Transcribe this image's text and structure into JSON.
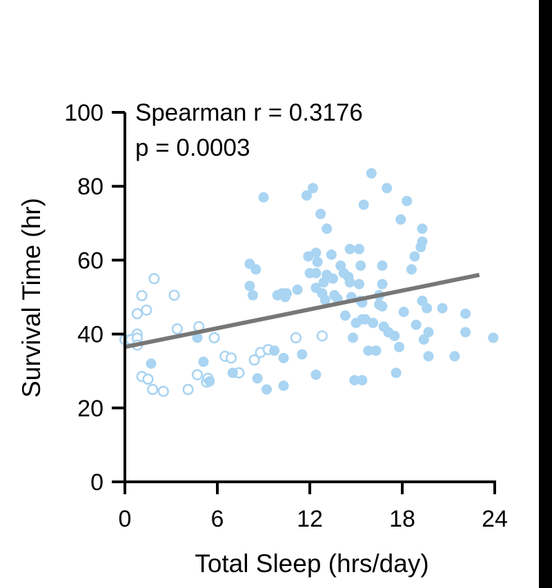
{
  "chart_data": {
    "type": "scatter",
    "xlabel": "Total Sleep (hrs/day)",
    "ylabel": "Survival Time (hr)",
    "xlim": [
      0,
      24
    ],
    "ylim": [
      0,
      100
    ],
    "xticks": [
      0,
      6,
      12,
      18,
      24
    ],
    "yticks": [
      0,
      20,
      40,
      60,
      80,
      100
    ],
    "annotations": [
      "Spearman r = 0.3176",
      "p = 0.0003"
    ],
    "grid": false,
    "series": [
      {
        "marker": "open-circle",
        "color": "#a9d4f2",
        "points": [
          [
            0,
            38.5
          ],
          [
            0.4,
            38.5
          ],
          [
            0.8,
            40
          ],
          [
            0.8,
            38.9
          ],
          [
            0.8,
            37
          ],
          [
            0.8,
            45.5
          ],
          [
            1.1,
            50.4
          ],
          [
            1.4,
            46.5
          ],
          [
            1.9,
            55
          ],
          [
            1.1,
            28.5
          ],
          [
            1.5,
            27.8
          ],
          [
            1.8,
            25
          ],
          [
            2.5,
            24.5
          ],
          [
            3.2,
            50.5
          ],
          [
            3.4,
            41.4
          ],
          [
            4.1,
            25
          ],
          [
            4.7,
            29
          ],
          [
            4.8,
            42
          ],
          [
            5.3,
            27
          ],
          [
            5.4,
            28
          ],
          [
            5.8,
            39
          ],
          [
            6.5,
            34
          ],
          [
            6.9,
            33.5
          ],
          [
            7.4,
            29.5
          ],
          [
            8.4,
            33
          ],
          [
            8.8,
            35
          ],
          [
            9.3,
            35.8
          ],
          [
            11.1,
            39
          ],
          [
            12.8,
            39.5
          ]
        ]
      },
      {
        "marker": "filled-circle",
        "color": "#a9d4f2",
        "points": [
          [
            1.7,
            32
          ],
          [
            4.7,
            39
          ],
          [
            5.1,
            32.5
          ],
          [
            5.5,
            27.2
          ],
          [
            7.0,
            29.5
          ],
          [
            8.1,
            53
          ],
          [
            8.1,
            59
          ],
          [
            8.3,
            50.5
          ],
          [
            8.5,
            57.5
          ],
          [
            8.6,
            28
          ],
          [
            9.0,
            77
          ],
          [
            9.2,
            25
          ],
          [
            9.7,
            35.5
          ],
          [
            9.9,
            50.5
          ],
          [
            10.2,
            51
          ],
          [
            10.3,
            33.5
          ],
          [
            10.3,
            26
          ],
          [
            10.4,
            50
          ],
          [
            10.5,
            51
          ],
          [
            11.2,
            52
          ],
          [
            11.5,
            34.5
          ],
          [
            11.8,
            77.5
          ],
          [
            11.9,
            61
          ],
          [
            12.0,
            56.5
          ],
          [
            12.2,
            79.5
          ],
          [
            12.4,
            62
          ],
          [
            12.4,
            56.5
          ],
          [
            12.5,
            59.5
          ],
          [
            12.4,
            52.5
          ],
          [
            12.4,
            29
          ],
          [
            12.7,
            72.5
          ],
          [
            12.8,
            51
          ],
          [
            12.9,
            54
          ],
          [
            13.0,
            49.2
          ],
          [
            13.1,
            56
          ],
          [
            13.1,
            68.5
          ],
          [
            13.4,
            61.5
          ],
          [
            13.5,
            55
          ],
          [
            13.6,
            50.5
          ],
          [
            13.8,
            49.5
          ],
          [
            14.0,
            58.5
          ],
          [
            14.2,
            56.5
          ],
          [
            14.3,
            45
          ],
          [
            14.5,
            55.5
          ],
          [
            14.6,
            63
          ],
          [
            14.6,
            54
          ],
          [
            14.7,
            50
          ],
          [
            14.8,
            39
          ],
          [
            14.9,
            27.5
          ],
          [
            15.0,
            43
          ],
          [
            15.2,
            63
          ],
          [
            15.2,
            53.5
          ],
          [
            15.3,
            49
          ],
          [
            15.4,
            48.5
          ],
          [
            15.3,
            58.5
          ],
          [
            15.5,
            75
          ],
          [
            15.4,
            44
          ],
          [
            15.4,
            27.5
          ],
          [
            15.6,
            44
          ],
          [
            15.8,
            35.5
          ],
          [
            16.0,
            83.5
          ],
          [
            16.1,
            43
          ],
          [
            16.3,
            35.5
          ],
          [
            16.5,
            48
          ],
          [
            16.5,
            50.5
          ],
          [
            16.7,
            47.5
          ],
          [
            16.7,
            53.5
          ],
          [
            16.7,
            58.5
          ],
          [
            16.8,
            42
          ],
          [
            17.0,
            79.5
          ],
          [
            17.1,
            40.5
          ],
          [
            17.5,
            39.5
          ],
          [
            17.6,
            29.5
          ],
          [
            17.8,
            36.5
          ],
          [
            17.9,
            71
          ],
          [
            18.1,
            46
          ],
          [
            18.3,
            76
          ],
          [
            18.6,
            57.5
          ],
          [
            18.8,
            61
          ],
          [
            18.9,
            42.5
          ],
          [
            19.2,
            63.5
          ],
          [
            19.3,
            65
          ],
          [
            19.3,
            68.5
          ],
          [
            19.3,
            49
          ],
          [
            19.4,
            38.5
          ],
          [
            19.6,
            47
          ],
          [
            19.7,
            40.5
          ],
          [
            19.7,
            34
          ],
          [
            20.6,
            47
          ],
          [
            21.4,
            34
          ],
          [
            22.1,
            45.5
          ],
          [
            22.1,
            40.5
          ],
          [
            23.9,
            39
          ]
        ]
      }
    ],
    "trend_line": {
      "x": [
        0,
        23
      ],
      "y": [
        36.5,
        56
      ],
      "color": "#777777"
    }
  }
}
